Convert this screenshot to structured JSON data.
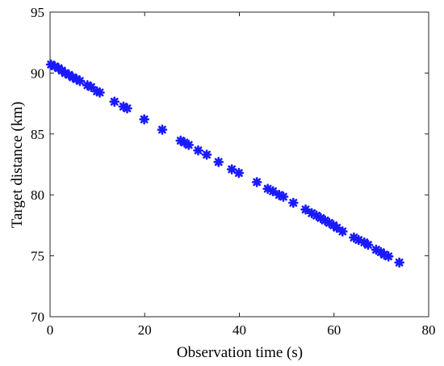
{
  "chart_data": {
    "type": "scatter",
    "xlabel": "Observation time (s)",
    "ylabel": "Target distance (km)",
    "xlim": [
      0,
      80
    ],
    "ylim": [
      70,
      95
    ],
    "xticks": [
      "0",
      "20",
      "40",
      "60",
      "80"
    ],
    "yticks": [
      "70",
      "75",
      "80",
      "85",
      "90",
      "95"
    ],
    "grid": false,
    "marker": "asterisk",
    "color": "#1a1aff",
    "series": [
      {
        "x": [
          0.2,
          1.0,
          1.8,
          2.5,
          3.2,
          4.0,
          4.8,
          5.6,
          6.3,
          7.9,
          8.7,
          9.9,
          10.5,
          13.6,
          15.5,
          16.3,
          19.9,
          23.7,
          27.6,
          28.4,
          29.3,
          31.3,
          33.1,
          35.6,
          38.4,
          39.9,
          43.7,
          46.0,
          47.1,
          48.4,
          49.3,
          51.4,
          54.0,
          55.3,
          56.3,
          57.2,
          58.1,
          59.0,
          59.9,
          60.6,
          61.8,
          64.2,
          65.2,
          66.4,
          67.2,
          68.9,
          69.9,
          70.6,
          71.5,
          73.8
        ],
        "y": [
          90.7,
          90.55,
          90.4,
          90.2,
          90.0,
          89.85,
          89.65,
          89.5,
          89.35,
          89.0,
          88.85,
          88.5,
          88.4,
          87.65,
          87.25,
          87.1,
          86.2,
          85.35,
          84.45,
          84.3,
          84.1,
          83.65,
          83.3,
          82.7,
          82.1,
          81.8,
          81.05,
          80.5,
          80.3,
          80.0,
          79.85,
          79.35,
          78.8,
          78.5,
          78.3,
          78.1,
          77.9,
          77.7,
          77.5,
          77.3,
          77.0,
          76.5,
          76.3,
          76.1,
          75.9,
          75.5,
          75.3,
          75.1,
          74.95,
          74.45
        ]
      }
    ]
  }
}
